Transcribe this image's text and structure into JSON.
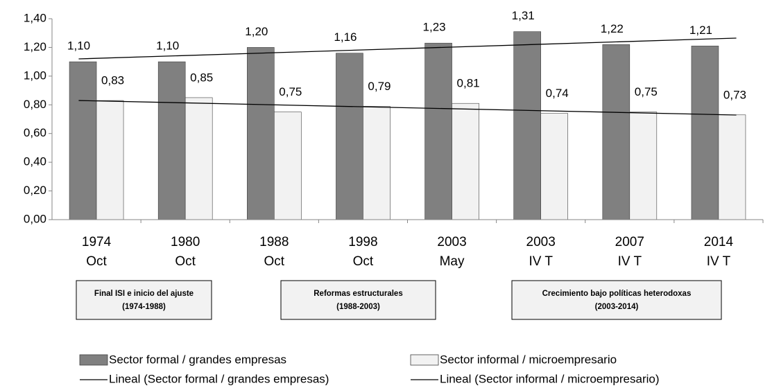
{
  "chart_data": {
    "type": "bar",
    "categories": [
      [
        "1974",
        "Oct"
      ],
      [
        "1980",
        "Oct"
      ],
      [
        "1988",
        "Oct"
      ],
      [
        "1998",
        "Oct"
      ],
      [
        "2003",
        "May"
      ],
      [
        "2003",
        "IV T"
      ],
      [
        "2007",
        "IV T"
      ],
      [
        "2014",
        "IV T"
      ]
    ],
    "series": [
      {
        "name": "Sector formal / grandes empresas",
        "color": "#808080",
        "values": [
          1.1,
          1.1,
          1.2,
          1.16,
          1.23,
          1.31,
          1.22,
          1.21
        ],
        "value_labels": [
          "1,10",
          "1,10",
          "1,20",
          "1,16",
          "1,23",
          "1,31",
          "1,22",
          "1,21"
        ]
      },
      {
        "name": "Sector informal / microempresario",
        "color": "#f2f2f2",
        "values": [
          0.83,
          0.85,
          0.75,
          0.79,
          0.81,
          0.74,
          0.75,
          0.73
        ],
        "value_labels": [
          "0,83",
          "0,85",
          "0,75",
          "0,79",
          "0,81",
          "0,74",
          "0,75",
          "0,73"
        ]
      }
    ],
    "trendlines": [
      {
        "name": "Lineal (Sector formal / grandes empresas)",
        "color": "#000000",
        "values": [
          1.12,
          1.265
        ]
      },
      {
        "name": "Lineal (Sector informal / microempresario)",
        "color": "#000000",
        "values": [
          0.83,
          0.729
        ]
      }
    ],
    "ylim": [
      0,
      1.4
    ],
    "yticks": [
      {
        "value": 0,
        "label": "0,00"
      },
      {
        "value": 0.2,
        "label": "0,20"
      },
      {
        "value": 0.4,
        "label": "0,40"
      },
      {
        "value": 0.6,
        "label": "0,60"
      },
      {
        "value": 0.8,
        "label": "0,80"
      },
      {
        "value": 1.0,
        "label": "1,00"
      },
      {
        "value": 1.2,
        "label": "1,20"
      },
      {
        "value": 1.4,
        "label": "1,40"
      }
    ],
    "grid": false,
    "periods": [
      {
        "label": "Final ISI e inicio del ajuste",
        "years": "(1974-1988)"
      },
      {
        "label": "Reformas estructurales",
        "years": "(1988-2003)"
      },
      {
        "label": "Crecimiento bajo políticas heterodoxas",
        "years": "(2003-2014)"
      }
    ]
  }
}
